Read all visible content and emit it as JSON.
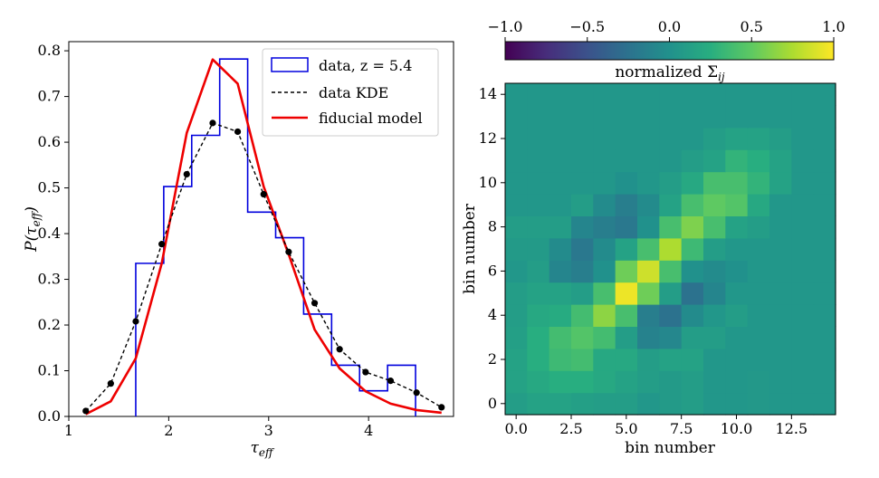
{
  "chart_data": [
    {
      "type": "line",
      "title": "",
      "xlabel_main": "τ",
      "xlabel_sub": "eff",
      "ylabel_main": "P(τ",
      "ylabel_sub": "eff",
      "ylabel_close": ")",
      "xlim": [
        1.0,
        4.85
      ],
      "ylim": [
        0.0,
        0.82
      ],
      "xticks": [
        1,
        2,
        3,
        4
      ],
      "xtick_labels": [
        "1",
        "2",
        "3",
        "4"
      ],
      "yticks": [
        0.0,
        0.1,
        0.2,
        0.3,
        0.4,
        0.5,
        0.6,
        0.7,
        0.8
      ],
      "ytick_labels": [
        "0.0",
        "0.1",
        "0.2",
        "0.3",
        "0.4",
        "0.5",
        "0.6",
        "0.7",
        "0.8"
      ],
      "legend": {
        "position": "top-right",
        "entries": [
          "data, z = 5.4",
          "data KDE",
          "fiducial model"
        ]
      },
      "series": [
        {
          "name": "data, z = 5.4",
          "kind": "step-histogram",
          "color": "#0000dd",
          "bin_edges": [
            1.67,
            1.95,
            2.23,
            2.51,
            2.79,
            3.07,
            3.35,
            3.63,
            3.91,
            4.19,
            4.47
          ],
          "values": [
            0.335,
            0.503,
            0.615,
            0.782,
            0.447,
            0.391,
            0.224,
            0.112,
            0.056,
            0.112
          ]
        },
        {
          "name": "data KDE",
          "kind": "dashed-line-markers",
          "color": "#000000",
          "x": [
            1.17,
            1.42,
            1.67,
            1.93,
            2.18,
            2.44,
            2.69,
            2.95,
            3.2,
            3.46,
            3.71,
            3.97,
            4.22,
            4.48,
            4.73
          ],
          "y": [
            0.012,
            0.072,
            0.208,
            0.377,
            0.53,
            0.642,
            0.623,
            0.486,
            0.36,
            0.248,
            0.147,
            0.097,
            0.078,
            0.052,
            0.02
          ]
        },
        {
          "name": "fiducial model",
          "kind": "line",
          "color": "#ee0000",
          "x": [
            1.17,
            1.42,
            1.67,
            1.93,
            2.18,
            2.44,
            2.69,
            2.95,
            3.2,
            3.46,
            3.71,
            3.97,
            4.22,
            4.48,
            4.73
          ],
          "y": [
            0.005,
            0.033,
            0.127,
            0.335,
            0.62,
            0.781,
            0.728,
            0.503,
            0.355,
            0.19,
            0.105,
            0.055,
            0.028,
            0.014,
            0.008
          ]
        }
      ]
    },
    {
      "type": "heatmap",
      "title": "",
      "xlabel": "bin number",
      "ylabel": "bin number",
      "xlim": [
        -0.5,
        14.5
      ],
      "ylim": [
        -0.5,
        14.5
      ],
      "xticks": [
        0.0,
        2.5,
        5.0,
        7.5,
        10.0,
        12.5
      ],
      "xtick_labels": [
        "0.0",
        "2.5",
        "5.0",
        "7.5",
        "10.0",
        "12.5"
      ],
      "yticks": [
        0,
        2,
        4,
        6,
        8,
        10,
        12,
        14
      ],
      "ytick_labels": [
        "0",
        "2",
        "4",
        "6",
        "8",
        "10",
        "12",
        "14"
      ],
      "colorbar": {
        "label_main": "normalized Σ",
        "label_sub": "ij",
        "range": [
          -1.0,
          1.0
        ],
        "ticks": [
          -1.0,
          -0.5,
          0.0,
          0.5,
          1.0
        ],
        "tick_labels": [
          "−1.0",
          "−0.5",
          "0.0",
          "0.5",
          "1.0"
        ],
        "colormap": "viridis"
      },
      "rows": 15,
      "cols": 15,
      "values": [
        [
          0.1,
          0.15,
          0.15,
          0.12,
          0.1,
          0.1,
          0.05,
          0.08,
          0.1,
          0.05,
          0.05,
          0.06,
          0.05,
          0.05,
          0.05
        ],
        [
          0.15,
          0.2,
          0.25,
          0.25,
          0.2,
          0.15,
          0.1,
          0.08,
          0.1,
          0.05,
          0.05,
          0.06,
          0.05,
          0.05,
          0.05
        ],
        [
          0.15,
          0.25,
          0.35,
          0.38,
          0.2,
          0.2,
          0.1,
          0.15,
          0.15,
          0.05,
          0.05,
          0.05,
          0.05,
          0.05,
          0.05
        ],
        [
          0.12,
          0.25,
          0.38,
          0.45,
          0.38,
          0.1,
          -0.12,
          -0.08,
          0.1,
          0.1,
          0.05,
          0.05,
          0.05,
          0.05,
          0.05
        ],
        [
          0.1,
          0.2,
          0.22,
          0.38,
          0.65,
          0.4,
          -0.15,
          -0.25,
          -0.05,
          0.05,
          0.1,
          0.05,
          0.05,
          0.05,
          0.05
        ],
        [
          0.1,
          0.15,
          0.15,
          0.1,
          0.4,
          0.95,
          0.55,
          0.1,
          -0.25,
          -0.1,
          0.05,
          0.05,
          0.05,
          0.05,
          0.05
        ],
        [
          0.05,
          0.1,
          -0.1,
          -0.15,
          0.0,
          0.55,
          0.85,
          0.4,
          0.0,
          -0.05,
          0.0,
          0.05,
          0.05,
          0.05,
          0.05
        ],
        [
          0.08,
          0.08,
          -0.05,
          -0.2,
          -0.05,
          0.15,
          0.4,
          0.75,
          0.35,
          0.1,
          0.05,
          0.05,
          0.05,
          0.05,
          0.05
        ],
        [
          0.1,
          0.1,
          0.1,
          -0.1,
          -0.15,
          -0.2,
          0.0,
          0.4,
          0.6,
          0.4,
          0.15,
          0.1,
          0.05,
          0.05,
          0.05
        ],
        [
          0.05,
          0.05,
          0.05,
          0.1,
          -0.05,
          -0.15,
          -0.05,
          0.15,
          0.4,
          0.5,
          0.45,
          0.2,
          0.05,
          0.05,
          0.05
        ],
        [
          0.05,
          0.05,
          0.05,
          0.05,
          0.05,
          0.0,
          0.05,
          0.1,
          0.2,
          0.4,
          0.4,
          0.3,
          0.15,
          0.05,
          0.05
        ],
        [
          0.05,
          0.05,
          0.05,
          0.05,
          0.05,
          0.05,
          0.05,
          0.05,
          0.1,
          0.15,
          0.3,
          0.25,
          0.15,
          0.05,
          0.05
        ],
        [
          0.05,
          0.05,
          0.05,
          0.05,
          0.05,
          0.05,
          0.05,
          0.05,
          0.05,
          0.1,
          0.15,
          0.15,
          0.1,
          0.05,
          0.05
        ],
        [
          0.05,
          0.05,
          0.05,
          0.05,
          0.05,
          0.05,
          0.05,
          0.05,
          0.05,
          0.05,
          0.05,
          0.05,
          0.05,
          0.05,
          0.05
        ],
        [
          0.05,
          0.05,
          0.05,
          0.05,
          0.05,
          0.05,
          0.05,
          0.05,
          0.05,
          0.05,
          0.05,
          0.05,
          0.05,
          0.05,
          0.05
        ]
      ]
    }
  ]
}
